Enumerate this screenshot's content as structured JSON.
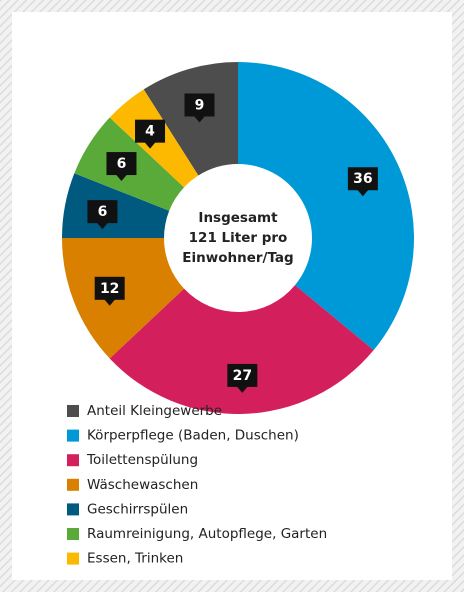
{
  "chart_data": {
    "type": "donut",
    "center_text": [
      "Insgesamt",
      "121 Liter pro",
      "Einwohner/Tag"
    ],
    "categories": [
      "Anteil Kleingewerbe",
      "Körperpflege (Baden, Duschen)",
      "Toilettenspülung",
      "Wäschewaschen",
      "Geschirrspülen",
      "Raumreinigung, Autopflege, Garten",
      "Essen, Trinken"
    ],
    "values": [
      9,
      36,
      27,
      12,
      6,
      6,
      4
    ],
    "colors": [
      "#4d4d4d",
      "#0099d8",
      "#d3205c",
      "#d98000",
      "#005a80",
      "#5aaa3a",
      "#fcb900"
    ],
    "legend": "bottom-left"
  }
}
